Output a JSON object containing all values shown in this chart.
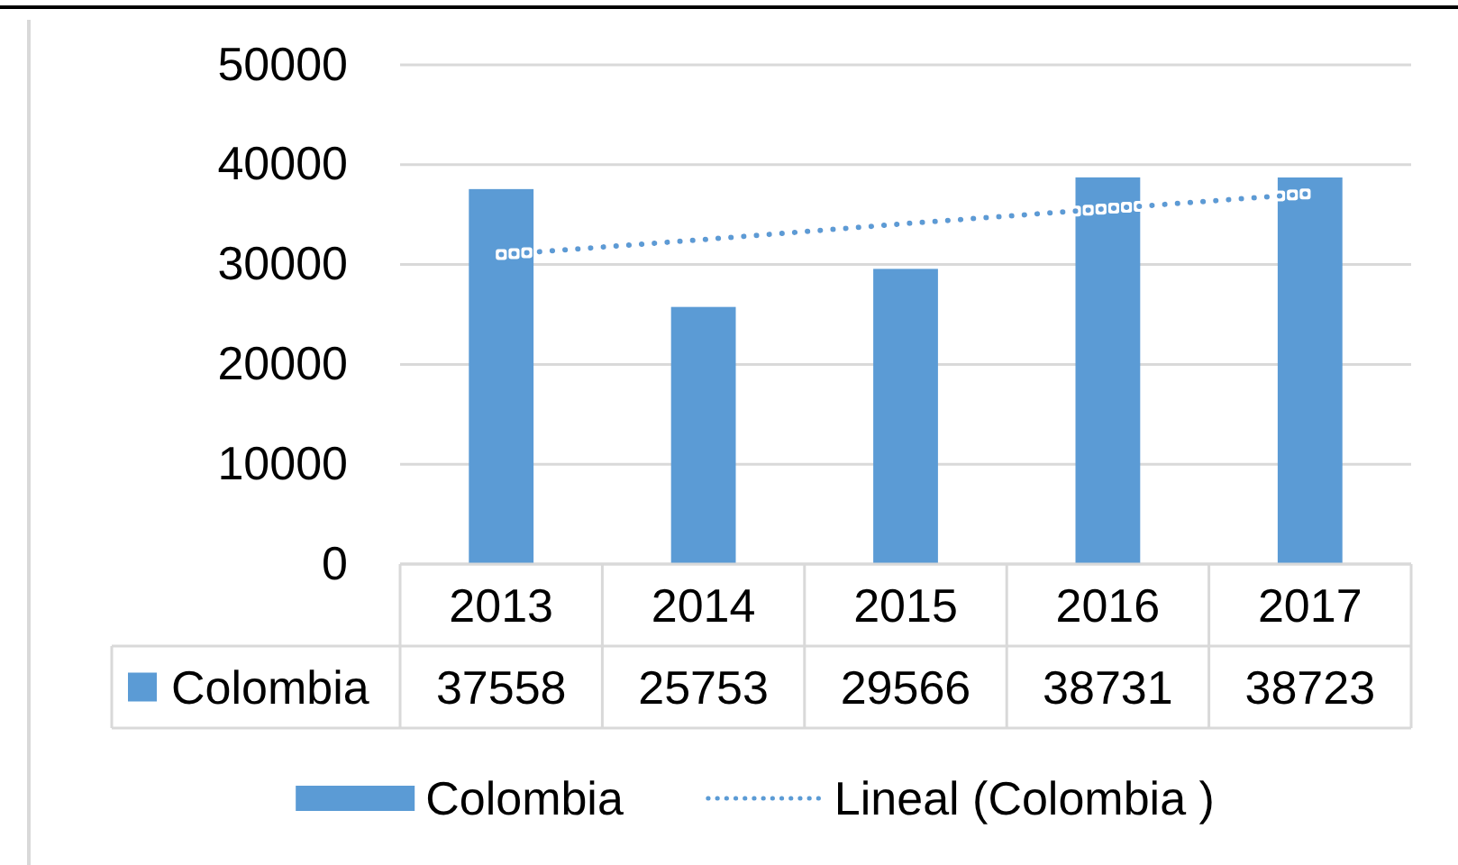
{
  "chart_data": {
    "type": "bar",
    "categories": [
      "2013",
      "2014",
      "2015",
      "2016",
      "2017"
    ],
    "series": [
      {
        "name": "Colombia",
        "color": "#5b9bd5",
        "values": [
          37558,
          25753,
          29566,
          38731,
          38723
        ]
      },
      {
        "name": "Lineal (Colombia )",
        "type": "line",
        "color": "#5b9bd5",
        "line_style": "dotted",
        "values": [
          31000,
          32500,
          34100,
          35600,
          37100
        ],
        "value_labels": [
          null,
          null,
          null,
          null,
          null
        ]
      }
    ],
    "ylim": [
      0,
      50000
    ],
    "yticks": [
      0,
      10000,
      20000,
      30000,
      40000,
      50000
    ],
    "grid": "y",
    "legend": "bottom",
    "data_labels": true
  }
}
